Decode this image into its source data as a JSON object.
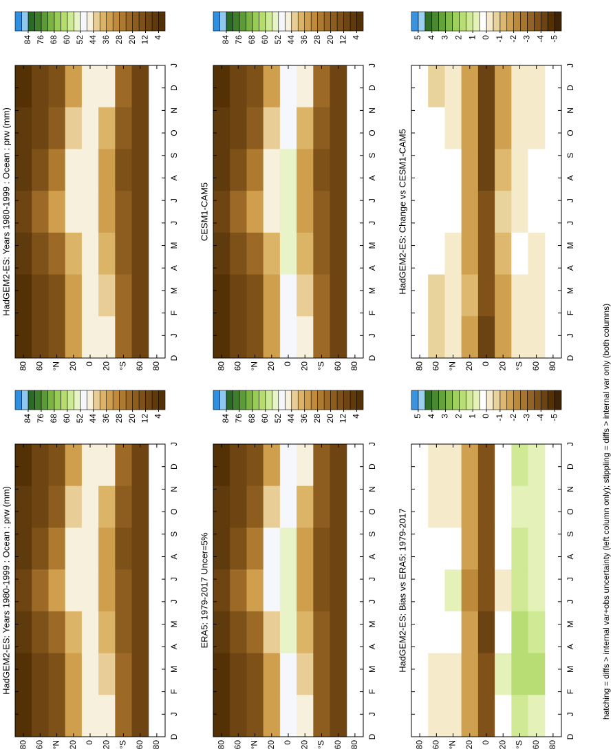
{
  "chart_data": [
    {
      "type": "contour",
      "title": "HadGEM2-ES: Years 1980-1999 : Ocean : prw (mm)",
      "categories": [
        "D",
        "J",
        "F",
        "M",
        "A",
        "M",
        "J",
        "J",
        "A",
        "S",
        "O",
        "N",
        "D",
        "J"
      ],
      "lats": [
        80,
        60,
        40,
        20,
        0,
        -20,
        -40,
        -60,
        -80
      ],
      "ylim": [
        90,
        -90
      ],
      "yticks": [
        80,
        60,
        {
          "value": 40,
          "label": "°N"
        },
        20,
        0,
        {
          "value": -20,
          "label": "20"
        },
        {
          "value": -40,
          "label": "°S"
        },
        {
          "value": -60,
          "label": "60"
        },
        {
          "value": -80,
          "label": "80"
        }
      ],
      "values": [
        [
          3,
          3,
          5,
          10,
          7,
          4,
          3
        ],
        [
          8,
          8,
          12,
          20,
          15,
          10,
          8
        ],
        [
          14,
          14,
          20,
          32,
          26,
          18,
          14
        ],
        [
          32,
          32,
          38,
          46,
          46,
          40,
          32
        ],
        [
          46,
          46,
          47,
          46,
          46,
          46,
          46
        ],
        [
          44,
          42,
          38,
          32,
          32,
          38,
          44
        ],
        [
          20,
          20,
          18,
          16,
          15,
          17,
          20
        ],
        [
          10,
          10,
          9,
          8,
          8,
          9,
          10
        ],
        [
          null,
          null,
          null,
          null,
          null,
          null,
          null
        ]
      ],
      "clim": [
        0,
        92
      ],
      "cticks": [
        84,
        76,
        68,
        60,
        52,
        44,
        36,
        28,
        20,
        12,
        4
      ],
      "colors": [
        "#543005",
        "#5f3a0c",
        "#6e4512",
        "#7d5118",
        "#8c5d1f",
        "#9c6a26",
        "#ad7a2f",
        "#bf8b3a",
        "#cf9f4d",
        "#dcb468",
        "#e8cd96",
        "#f7f0dc",
        "#f5f7fc",
        "#e8f3c8",
        "#cdea94",
        "#b5dd6e",
        "#99cc55",
        "#7cb444",
        "#5e9a37",
        "#3f7f2c",
        "#2a6a25",
        "#8ec8ee",
        "#2f8fe0"
      ]
    },
    {
      "type": "contour",
      "title": "HadGEM2-ES: Years 1980-1999 : Ocean : prw (mm)",
      "categories": [
        "D",
        "J",
        "F",
        "M",
        "A",
        "M",
        "J",
        "J",
        "A",
        "S",
        "O",
        "N",
        "D",
        "J"
      ],
      "lats": [
        80,
        60,
        40,
        20,
        0,
        -20,
        -40,
        -60,
        -80
      ],
      "ylim": [
        90,
        -90
      ],
      "yticks": [
        80,
        60,
        {
          "value": 40,
          "label": "°N"
        },
        20,
        0,
        {
          "value": -20,
          "label": "20"
        },
        {
          "value": -40,
          "label": "°S"
        },
        {
          "value": -60,
          "label": "60"
        },
        {
          "value": -80,
          "label": "80"
        }
      ],
      "values": [
        [
          3,
          3,
          5,
          10,
          7,
          4,
          3
        ],
        [
          8,
          8,
          12,
          20,
          15,
          10,
          8
        ],
        [
          14,
          14,
          20,
          32,
          26,
          18,
          14
        ],
        [
          32,
          32,
          38,
          46,
          46,
          40,
          32
        ],
        [
          46,
          46,
          47,
          46,
          46,
          46,
          46
        ],
        [
          44,
          42,
          38,
          32,
          32,
          38,
          44
        ],
        [
          20,
          20,
          18,
          16,
          15,
          17,
          20
        ],
        [
          10,
          10,
          9,
          8,
          8,
          9,
          10
        ],
        [
          null,
          null,
          null,
          null,
          null,
          null,
          null
        ]
      ],
      "clim": [
        0,
        92
      ],
      "cticks": [
        84,
        76,
        68,
        60,
        52,
        44,
        36,
        28,
        20,
        12,
        4
      ],
      "colors": [
        "#543005",
        "#5f3a0c",
        "#6e4512",
        "#7d5118",
        "#8c5d1f",
        "#9c6a26",
        "#ad7a2f",
        "#bf8b3a",
        "#cf9f4d",
        "#dcb468",
        "#e8cd96",
        "#f7f0dc",
        "#f5f7fc",
        "#e8f3c8",
        "#cdea94",
        "#b5dd6e",
        "#99cc55",
        "#7cb444",
        "#5e9a37",
        "#3f7f2c",
        "#2a6a25",
        "#8ec8ee",
        "#2f8fe0"
      ]
    },
    {
      "type": "contour",
      "title": "ERA5: 1979-2017 Uncer=5%",
      "categories": [
        "D",
        "J",
        "F",
        "M",
        "A",
        "M",
        "J",
        "J",
        "A",
        "S",
        "O",
        "N",
        "D",
        "J"
      ],
      "lats": [
        80,
        60,
        40,
        20,
        0,
        -20,
        -40,
        -60,
        -80
      ],
      "ylim": [
        90,
        -90
      ],
      "yticks": [
        80,
        60,
        {
          "value": 40,
          "label": "°N"
        },
        20,
        0,
        {
          "value": -20,
          "label": "20"
        },
        {
          "value": -40,
          "label": "°S"
        },
        {
          "value": -60,
          "label": "60"
        },
        {
          "value": -80,
          "label": "80"
        }
      ],
      "values": [
        [
          3,
          3,
          5,
          10,
          7,
          4,
          3
        ],
        [
          8,
          8,
          12,
          20,
          15,
          10,
          8
        ],
        [
          14,
          15,
          20,
          32,
          26,
          18,
          14
        ],
        [
          34,
          34,
          40,
          48,
          48,
          42,
          34
        ],
        [
          50,
          50,
          53,
          54,
          53,
          51,
          50
        ],
        [
          44,
          42,
          38,
          32,
          32,
          38,
          44
        ],
        [
          19,
          19,
          17,
          15,
          14,
          16,
          19
        ],
        [
          10,
          10,
          9,
          8,
          8,
          9,
          10
        ],
        [
          null,
          null,
          null,
          null,
          null,
          null,
          null
        ]
      ],
      "clim": [
        0,
        92
      ],
      "cticks": [
        84,
        76,
        68,
        60,
        52,
        44,
        36,
        28,
        20,
        12,
        4
      ],
      "colors": [
        "#543005",
        "#5f3a0c",
        "#6e4512",
        "#7d5118",
        "#8c5d1f",
        "#9c6a26",
        "#ad7a2f",
        "#bf8b3a",
        "#cf9f4d",
        "#dcb468",
        "#e8cd96",
        "#f7f0dc",
        "#f5f7fc",
        "#e8f3c8",
        "#cdea94",
        "#b5dd6e",
        "#99cc55",
        "#7cb444",
        "#5e9a37",
        "#3f7f2c",
        "#2a6a25",
        "#8ec8ee",
        "#2f8fe0"
      ]
    },
    {
      "type": "contour",
      "title": "CESM1-CAM5",
      "categories": [
        "D",
        "J",
        "F",
        "M",
        "A",
        "M",
        "J",
        "J",
        "A",
        "S",
        "O",
        "N",
        "D",
        "J"
      ],
      "lats": [
        80,
        60,
        40,
        20,
        0,
        -20,
        -40,
        -60,
        -80
      ],
      "ylim": [
        90,
        -90
      ],
      "yticks": [
        80,
        60,
        {
          "value": 40,
          "label": "°N"
        },
        20,
        0,
        {
          "value": -20,
          "label": "20"
        },
        {
          "value": -40,
          "label": "°S"
        },
        {
          "value": -60,
          "label": "60"
        },
        {
          "value": -80,
          "label": "80"
        }
      ],
      "values": [
        [
          3,
          3,
          5,
          10,
          7,
          4,
          3
        ],
        [
          8,
          9,
          12,
          20,
          15,
          10,
          8
        ],
        [
          15,
          15,
          21,
          33,
          27,
          18,
          15
        ],
        [
          33,
          33,
          39,
          47,
          47,
          41,
          33
        ],
        [
          50,
          51,
          53,
          54,
          53,
          51,
          50
        ],
        [
          45,
          43,
          39,
          33,
          33,
          39,
          45
        ],
        [
          20,
          20,
          18,
          16,
          15,
          17,
          20
        ],
        [
          10,
          10,
          9,
          8,
          8,
          9,
          10
        ],
        [
          null,
          null,
          null,
          null,
          null,
          null,
          null
        ]
      ],
      "clim": [
        0,
        92
      ],
      "cticks": [
        84,
        76,
        68,
        60,
        52,
        44,
        36,
        28,
        20,
        12,
        4
      ],
      "colors": [
        "#543005",
        "#5f3a0c",
        "#6e4512",
        "#7d5118",
        "#8c5d1f",
        "#9c6a26",
        "#ad7a2f",
        "#bf8b3a",
        "#cf9f4d",
        "#dcb468",
        "#e8cd96",
        "#f7f0dc",
        "#f5f7fc",
        "#e8f3c8",
        "#cdea94",
        "#b5dd6e",
        "#99cc55",
        "#7cb444",
        "#5e9a37",
        "#3f7f2c",
        "#2a6a25",
        "#8ec8ee",
        "#2f8fe0"
      ]
    },
    {
      "type": "contour",
      "title": "HadGEM2-ES: Bias vs ERA5: 1979-2017",
      "categories": [
        "D",
        "J",
        "F",
        "M",
        "A",
        "M",
        "J",
        "J",
        "A",
        "S",
        "O",
        "N",
        "D",
        "J"
      ],
      "lats": [
        80,
        60,
        40,
        20,
        0,
        -20,
        -40,
        -60,
        -80
      ],
      "ylim": [
        90,
        -90
      ],
      "yticks": [
        80,
        60,
        {
          "value": 40,
          "label": "°N"
        },
        20,
        0,
        {
          "value": -20,
          "label": "20"
        },
        {
          "value": -40,
          "label": "°S"
        },
        {
          "value": -60,
          "label": "60"
        },
        {
          "value": -80,
          "label": "80"
        }
      ],
      "values": [
        [
          0,
          0,
          0,
          0,
          0,
          0,
          0
        ],
        [
          -0.5,
          -0.5,
          0,
          0,
          0,
          -0.5,
          -0.5
        ],
        [
          -0.5,
          -0.5,
          0,
          0.5,
          0,
          -0.5,
          -0.5
        ],
        [
          -2,
          -2,
          -2,
          -2.5,
          -2,
          -2,
          -2
        ],
        [
          -4,
          -4,
          -4.5,
          -4,
          -4,
          -4,
          -4
        ],
        [
          0,
          0.5,
          0,
          -0.5,
          0,
          0,
          0
        ],
        [
          1,
          1.5,
          1.5,
          1,
          1,
          0.5,
          1
        ],
        [
          0.5,
          1.5,
          1,
          0.5,
          0.5,
          0.5,
          0.5
        ],
        [
          null,
          null,
          null,
          null,
          null,
          null,
          null
        ]
      ],
      "clim": [
        -5.5,
        5.5
      ],
      "cticks": [
        5,
        4,
        3,
        2,
        1,
        0,
        -1,
        -2,
        -3,
        -4,
        -5
      ],
      "colors": [
        "#3d2204",
        "#543005",
        "#6b4211",
        "#80521a",
        "#946224",
        "#a8752f",
        "#bd8a3c",
        "#cfa04f",
        "#ddb86e",
        "#e9d39c",
        "#f5ebcb",
        "#ffffff",
        "#e4f2b9",
        "#cfe995",
        "#b8dd74",
        "#9fcf5c",
        "#83bb49",
        "#66a23a",
        "#4a892f",
        "#2f7026",
        "#9dd0f0",
        "#3a93df"
      ]
    },
    {
      "type": "contour",
      "title": "HadGEM2-ES: Change vs CESM1-CAM5",
      "categories": [
        "D",
        "J",
        "F",
        "M",
        "A",
        "M",
        "J",
        "J",
        "A",
        "S",
        "O",
        "N",
        "D",
        "J"
      ],
      "lats": [
        80,
        60,
        40,
        20,
        0,
        -20,
        -40,
        -60,
        -80
      ],
      "ylim": [
        90,
        -90
      ],
      "yticks": [
        80,
        60,
        {
          "value": 40,
          "label": "°N"
        },
        20,
        0,
        {
          "value": -20,
          "label": "20"
        },
        {
          "value": -40,
          "label": "°S"
        },
        {
          "value": -60,
          "label": "60"
        },
        {
          "value": -80,
          "label": "80"
        }
      ],
      "values": [
        [
          0,
          0,
          0,
          0,
          0,
          0,
          0
        ],
        [
          -1,
          -1,
          0,
          0,
          0,
          0,
          -1
        ],
        [
          -0.5,
          -0.5,
          -0.5,
          0,
          0,
          -0.5,
          -0.5
        ],
        [
          -2,
          -1.5,
          -2,
          -2,
          -2,
          -2,
          -2
        ],
        [
          -4.5,
          -4,
          -4,
          -4,
          -4.5,
          -4.5,
          -4.5
        ],
        [
          -2,
          -2,
          -1.5,
          -1,
          -1.5,
          -2,
          -2
        ],
        [
          -0.5,
          -0.5,
          0,
          -0.5,
          -0.5,
          -0.5,
          -0.5
        ],
        [
          -0.5,
          -0.5,
          -0.5,
          0,
          0,
          -0.5,
          -0.5
        ],
        [
          null,
          null,
          null,
          null,
          null,
          null,
          null
        ]
      ],
      "clim": [
        -5.5,
        5.5
      ],
      "cticks": [
        5,
        4,
        3,
        2,
        1,
        0,
        -1,
        -2,
        -3,
        -4,
        -5
      ],
      "colors": [
        "#3d2204",
        "#543005",
        "#6b4211",
        "#80521a",
        "#946224",
        "#a8752f",
        "#bd8a3c",
        "#cfa04f",
        "#ddb86e",
        "#e9d39c",
        "#f5ebcb",
        "#ffffff",
        "#e4f2b9",
        "#cfe995",
        "#b8dd74",
        "#9fcf5c",
        "#83bb49",
        "#66a23a",
        "#4a892f",
        "#2f7026",
        "#9dd0f0",
        "#3a93df"
      ]
    }
  ],
  "note": "hatching = diffs > internal var+obs uncertainty (left column only); stippling = diffs > internal var only (both columns)"
}
